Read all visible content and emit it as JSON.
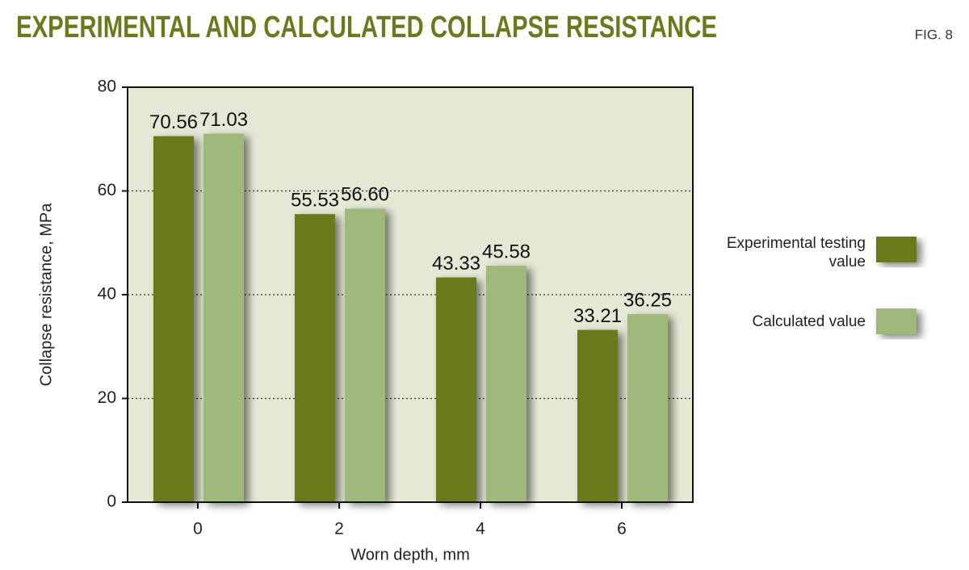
{
  "chart_data": {
    "type": "bar",
    "title": "EXPERIMENTAL AND CALCULATED COLLAPSE RESISTANCE",
    "figure_label": "FIG. 8",
    "x_label": "Worn depth, mm",
    "y_label": "Collapse resistance, MPa",
    "categories": [
      "0",
      "2",
      "4",
      "6"
    ],
    "series": [
      {
        "name": "Experimental testing value",
        "color": "#687a1c",
        "values": [
          70.56,
          55.53,
          43.33,
          33.21
        ]
      },
      {
        "name": "Calculated value",
        "color": "#9fb87c",
        "values": [
          71.03,
          56.6,
          45.58,
          36.25
        ],
        "value_labels": [
          "71.03",
          "56.60",
          "45.58",
          "36.25"
        ]
      }
    ],
    "ylim": [
      0,
      80
    ],
    "yticks": [
      0,
      20,
      40,
      60,
      80
    ],
    "grid": true
  }
}
